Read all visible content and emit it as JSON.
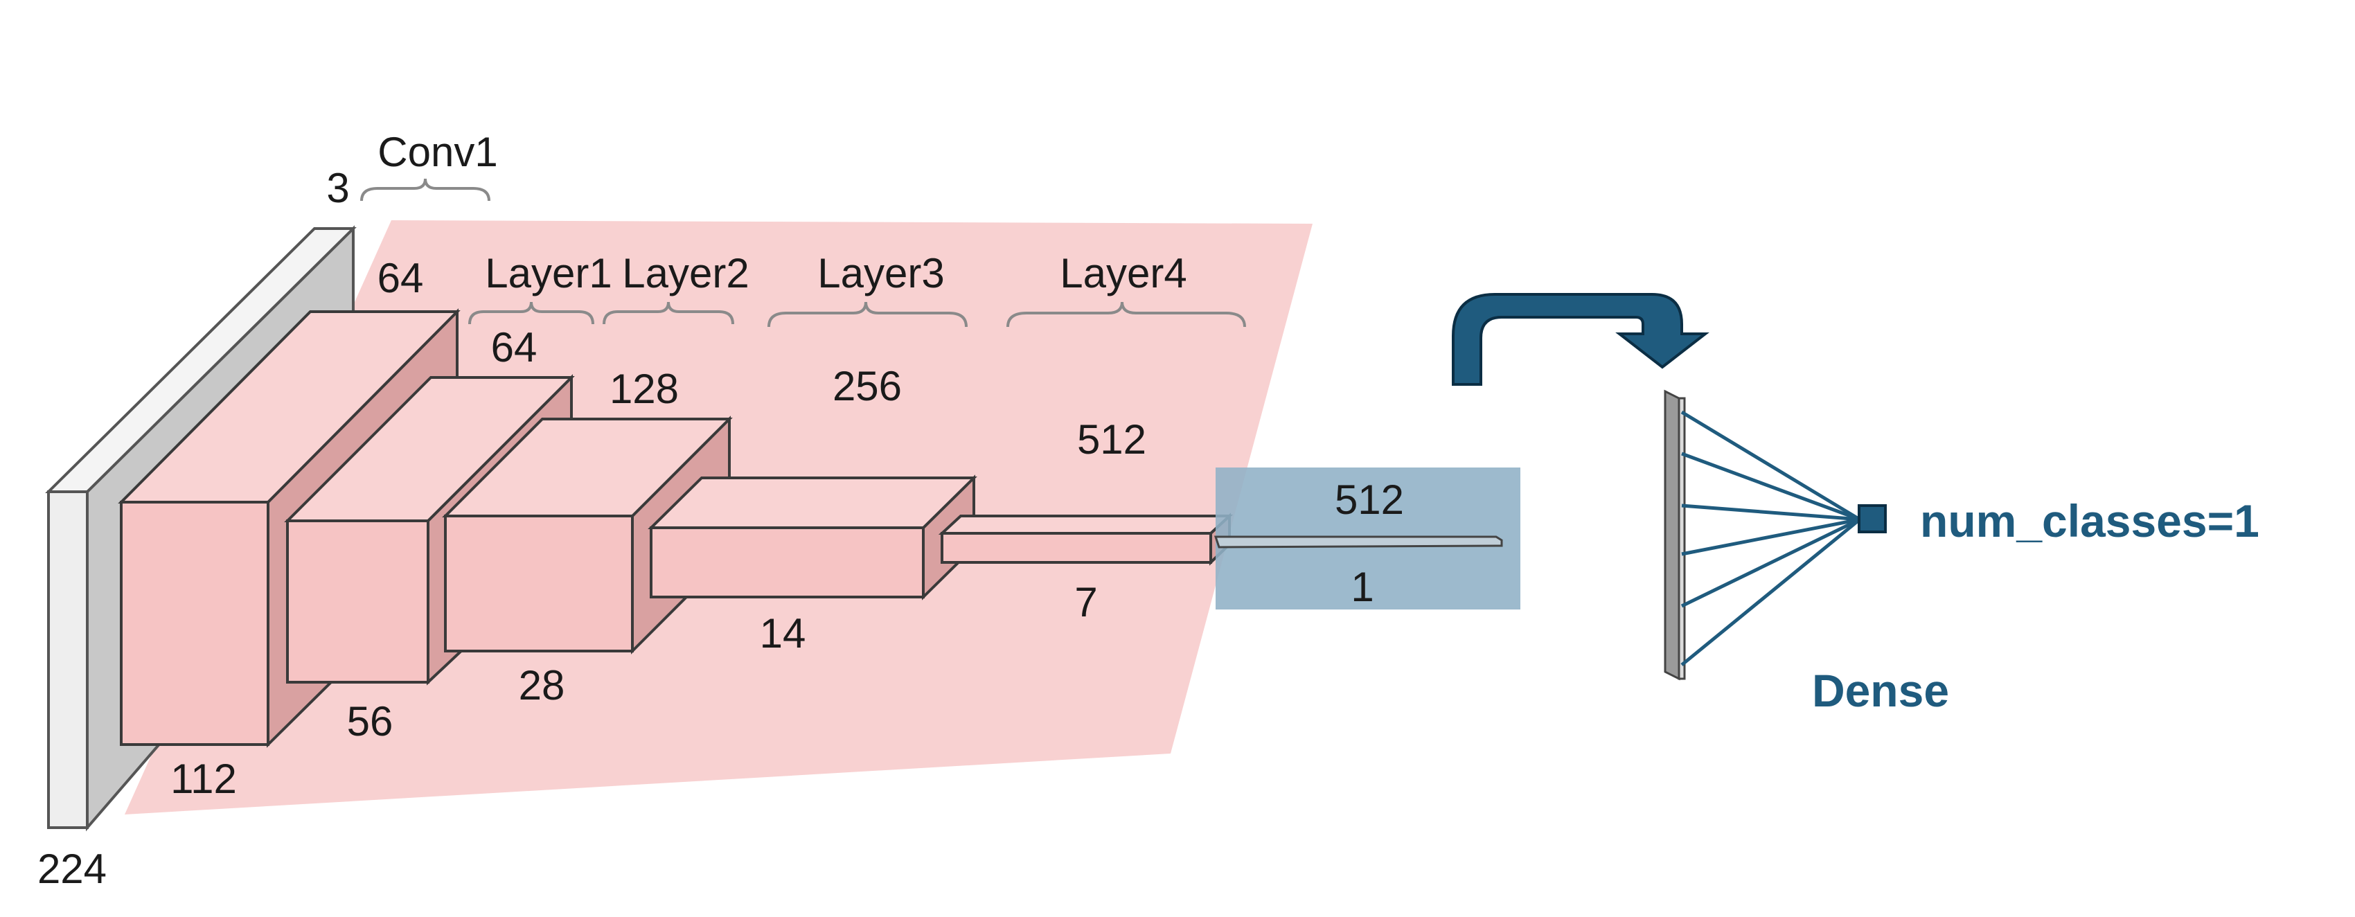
{
  "input": {
    "channels": "3",
    "size": "224"
  },
  "conv1": {
    "label": "Conv1",
    "channels": "64",
    "size": "112"
  },
  "layers": [
    {
      "label": "Layer1",
      "channels": "64",
      "size": "56"
    },
    {
      "label": "Layer2",
      "channels": "128",
      "size": "28"
    },
    {
      "label": "Layer3",
      "channels": "256",
      "size": "14"
    },
    {
      "label": "Layer4",
      "channels": "512",
      "size": "7"
    }
  ],
  "pool": {
    "channels": "512",
    "size": "1"
  },
  "dense": {
    "label": "Dense",
    "output": "num_classes=1"
  },
  "colors": {
    "backbone_region": "#f7c9c9",
    "pool_region": "#8fb1c6",
    "accent": "#1f5b7e",
    "input_face": "#eeeeee",
    "input_side": "#c8c8c8"
  }
}
